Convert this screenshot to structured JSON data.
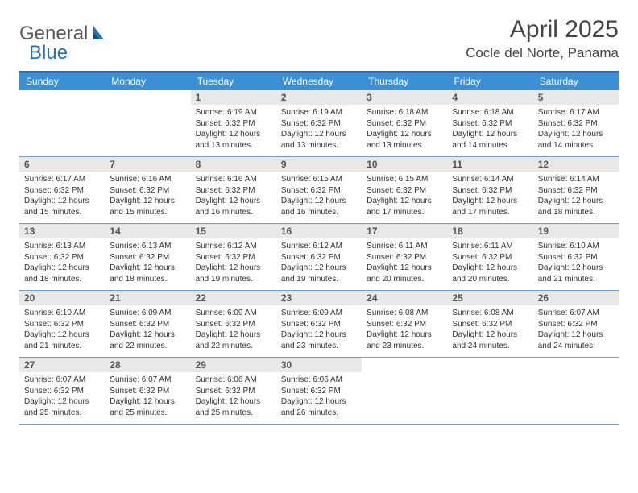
{
  "brand": {
    "word1": "General",
    "word2": "Blue"
  },
  "title": "April 2025",
  "location": "Cocle del Norte, Panama",
  "colors": {
    "header_bar": "#3b8fd4",
    "top_border": "#2b6fb0",
    "row_border": "#7a9bc0",
    "daynum_bg": "#e8e8e8",
    "text": "#333333",
    "logo_gray": "#5a5a5a",
    "logo_blue": "#2b6fb0",
    "bg": "#ffffff"
  },
  "weekdays": [
    "Sunday",
    "Monday",
    "Tuesday",
    "Wednesday",
    "Thursday",
    "Friday",
    "Saturday"
  ],
  "weeks": [
    [
      {
        "n": "",
        "sr": "",
        "ss": "",
        "dl": ""
      },
      {
        "n": "",
        "sr": "",
        "ss": "",
        "dl": ""
      },
      {
        "n": "1",
        "sr": "Sunrise: 6:19 AM",
        "ss": "Sunset: 6:32 PM",
        "dl": "Daylight: 12 hours and 13 minutes."
      },
      {
        "n": "2",
        "sr": "Sunrise: 6:19 AM",
        "ss": "Sunset: 6:32 PM",
        "dl": "Daylight: 12 hours and 13 minutes."
      },
      {
        "n": "3",
        "sr": "Sunrise: 6:18 AM",
        "ss": "Sunset: 6:32 PM",
        "dl": "Daylight: 12 hours and 13 minutes."
      },
      {
        "n": "4",
        "sr": "Sunrise: 6:18 AM",
        "ss": "Sunset: 6:32 PM",
        "dl": "Daylight: 12 hours and 14 minutes."
      },
      {
        "n": "5",
        "sr": "Sunrise: 6:17 AM",
        "ss": "Sunset: 6:32 PM",
        "dl": "Daylight: 12 hours and 14 minutes."
      }
    ],
    [
      {
        "n": "6",
        "sr": "Sunrise: 6:17 AM",
        "ss": "Sunset: 6:32 PM",
        "dl": "Daylight: 12 hours and 15 minutes."
      },
      {
        "n": "7",
        "sr": "Sunrise: 6:16 AM",
        "ss": "Sunset: 6:32 PM",
        "dl": "Daylight: 12 hours and 15 minutes."
      },
      {
        "n": "8",
        "sr": "Sunrise: 6:16 AM",
        "ss": "Sunset: 6:32 PM",
        "dl": "Daylight: 12 hours and 16 minutes."
      },
      {
        "n": "9",
        "sr": "Sunrise: 6:15 AM",
        "ss": "Sunset: 6:32 PM",
        "dl": "Daylight: 12 hours and 16 minutes."
      },
      {
        "n": "10",
        "sr": "Sunrise: 6:15 AM",
        "ss": "Sunset: 6:32 PM",
        "dl": "Daylight: 12 hours and 17 minutes."
      },
      {
        "n": "11",
        "sr": "Sunrise: 6:14 AM",
        "ss": "Sunset: 6:32 PM",
        "dl": "Daylight: 12 hours and 17 minutes."
      },
      {
        "n": "12",
        "sr": "Sunrise: 6:14 AM",
        "ss": "Sunset: 6:32 PM",
        "dl": "Daylight: 12 hours and 18 minutes."
      }
    ],
    [
      {
        "n": "13",
        "sr": "Sunrise: 6:13 AM",
        "ss": "Sunset: 6:32 PM",
        "dl": "Daylight: 12 hours and 18 minutes."
      },
      {
        "n": "14",
        "sr": "Sunrise: 6:13 AM",
        "ss": "Sunset: 6:32 PM",
        "dl": "Daylight: 12 hours and 18 minutes."
      },
      {
        "n": "15",
        "sr": "Sunrise: 6:12 AM",
        "ss": "Sunset: 6:32 PM",
        "dl": "Daylight: 12 hours and 19 minutes."
      },
      {
        "n": "16",
        "sr": "Sunrise: 6:12 AM",
        "ss": "Sunset: 6:32 PM",
        "dl": "Daylight: 12 hours and 19 minutes."
      },
      {
        "n": "17",
        "sr": "Sunrise: 6:11 AM",
        "ss": "Sunset: 6:32 PM",
        "dl": "Daylight: 12 hours and 20 minutes."
      },
      {
        "n": "18",
        "sr": "Sunrise: 6:11 AM",
        "ss": "Sunset: 6:32 PM",
        "dl": "Daylight: 12 hours and 20 minutes."
      },
      {
        "n": "19",
        "sr": "Sunrise: 6:10 AM",
        "ss": "Sunset: 6:32 PM",
        "dl": "Daylight: 12 hours and 21 minutes."
      }
    ],
    [
      {
        "n": "20",
        "sr": "Sunrise: 6:10 AM",
        "ss": "Sunset: 6:32 PM",
        "dl": "Daylight: 12 hours and 21 minutes."
      },
      {
        "n": "21",
        "sr": "Sunrise: 6:09 AM",
        "ss": "Sunset: 6:32 PM",
        "dl": "Daylight: 12 hours and 22 minutes."
      },
      {
        "n": "22",
        "sr": "Sunrise: 6:09 AM",
        "ss": "Sunset: 6:32 PM",
        "dl": "Daylight: 12 hours and 22 minutes."
      },
      {
        "n": "23",
        "sr": "Sunrise: 6:09 AM",
        "ss": "Sunset: 6:32 PM",
        "dl": "Daylight: 12 hours and 23 minutes."
      },
      {
        "n": "24",
        "sr": "Sunrise: 6:08 AM",
        "ss": "Sunset: 6:32 PM",
        "dl": "Daylight: 12 hours and 23 minutes."
      },
      {
        "n": "25",
        "sr": "Sunrise: 6:08 AM",
        "ss": "Sunset: 6:32 PM",
        "dl": "Daylight: 12 hours and 24 minutes."
      },
      {
        "n": "26",
        "sr": "Sunrise: 6:07 AM",
        "ss": "Sunset: 6:32 PM",
        "dl": "Daylight: 12 hours and 24 minutes."
      }
    ],
    [
      {
        "n": "27",
        "sr": "Sunrise: 6:07 AM",
        "ss": "Sunset: 6:32 PM",
        "dl": "Daylight: 12 hours and 25 minutes."
      },
      {
        "n": "28",
        "sr": "Sunrise: 6:07 AM",
        "ss": "Sunset: 6:32 PM",
        "dl": "Daylight: 12 hours and 25 minutes."
      },
      {
        "n": "29",
        "sr": "Sunrise: 6:06 AM",
        "ss": "Sunset: 6:32 PM",
        "dl": "Daylight: 12 hours and 25 minutes."
      },
      {
        "n": "30",
        "sr": "Sunrise: 6:06 AM",
        "ss": "Sunset: 6:32 PM",
        "dl": "Daylight: 12 hours and 26 minutes."
      },
      {
        "n": "",
        "sr": "",
        "ss": "",
        "dl": ""
      },
      {
        "n": "",
        "sr": "",
        "ss": "",
        "dl": ""
      },
      {
        "n": "",
        "sr": "",
        "ss": "",
        "dl": ""
      }
    ]
  ]
}
